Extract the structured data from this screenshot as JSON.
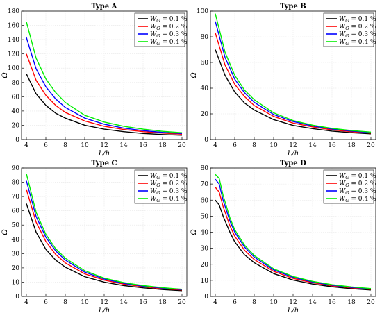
{
  "chart_data": [
    {
      "type": "line",
      "title": "Type A",
      "xlabel": "L/h",
      "ylabel": "Ω",
      "xlim": [
        3.5,
        20.5
      ],
      "ylim": [
        0,
        180
      ],
      "xticks": [
        "4",
        "6",
        "8",
        "10",
        "12",
        "14",
        "16",
        "18",
        "20"
      ],
      "yticks": [
        "0",
        "20",
        "40",
        "60",
        "80",
        "100",
        "120",
        "140",
        "160",
        "180"
      ],
      "grid": true,
      "legend_position": "top-right",
      "x": [
        4,
        5,
        6,
        7,
        8,
        10,
        12,
        14,
        16,
        18,
        20
      ],
      "series": [
        {
          "name": "W_G = 0.1 %",
          "color": "#000000",
          "values": [
            92,
            64,
            48,
            37,
            30,
            20,
            14.5,
            11,
            8.5,
            7,
            6
          ]
        },
        {
          "name": "W_G = 0.2 %",
          "color": "#ff0000",
          "values": [
            120,
            83,
            62,
            48,
            38,
            26,
            18.5,
            14,
            11,
            9,
            7.5
          ]
        },
        {
          "name": "W_G = 0.3 %",
          "color": "#0000ff",
          "values": [
            143,
            99,
            74,
            57,
            45,
            30,
            21.5,
            16,
            12.5,
            10,
            8.5
          ]
        },
        {
          "name": "W_G = 0.4 %",
          "color": "#00ee00",
          "values": [
            165,
            114,
            85,
            66,
            52,
            34,
            24.5,
            18.5,
            14.5,
            11.5,
            9.5
          ]
        }
      ]
    },
    {
      "type": "line",
      "title": "Type B",
      "xlabel": "L/h",
      "ylabel": "Ω",
      "xlim": [
        3.5,
        20.5
      ],
      "ylim": [
        0,
        100
      ],
      "xticks": [
        "4",
        "6",
        "8",
        "10",
        "12",
        "14",
        "16",
        "18",
        "20"
      ],
      "yticks": [
        "0",
        "20",
        "40",
        "60",
        "80",
        "100"
      ],
      "grid": true,
      "legend_position": "top-right",
      "x": [
        4,
        5,
        6,
        7,
        8,
        10,
        12,
        14,
        16,
        18,
        20
      ],
      "series": [
        {
          "name": "W_G = 0.1 %",
          "color": "#000000",
          "values": [
            70,
            50,
            37,
            28.5,
            23,
            15.5,
            11,
            8.5,
            6.5,
            5.3,
            4.4
          ]
        },
        {
          "name": "W_G = 0.2 %",
          "color": "#ff0000",
          "values": [
            83,
            58,
            43,
            33.5,
            26.5,
            18,
            12.8,
            9.8,
            7.5,
            6.1,
            5
          ]
        },
        {
          "name": "W_G = 0.3 %",
          "color": "#0000ff",
          "values": [
            92,
            64,
            47,
            36.5,
            29,
            19.5,
            14,
            10.6,
            8.2,
            6.6,
            5.4
          ]
        },
        {
          "name": "W_G = 0.4 %",
          "color": "#00ee00",
          "values": [
            98,
            68,
            50,
            38.5,
            31,
            20.8,
            14.8,
            11.2,
            8.7,
            7,
            5.8
          ]
        }
      ]
    },
    {
      "type": "line",
      "title": "Type C",
      "xlabel": "L/h",
      "ylabel": "Ω",
      "xlim": [
        3.5,
        20.5
      ],
      "ylim": [
        0,
        90
      ],
      "xticks": [
        "4",
        "6",
        "8",
        "10",
        "12",
        "14",
        "16",
        "18",
        "20"
      ],
      "yticks": [
        "0",
        "10",
        "20",
        "30",
        "40",
        "50",
        "60",
        "70",
        "80",
        "90"
      ],
      "grid": true,
      "legend_position": "top-right",
      "x": [
        4,
        5,
        6,
        7,
        8,
        10,
        12,
        14,
        16,
        18,
        20
      ],
      "series": [
        {
          "name": "W_G = 0.1 %",
          "color": "#000000",
          "values": [
            65,
            45,
            33,
            25.5,
            20.5,
            13.8,
            10,
            7.6,
            6,
            4.8,
            4
          ]
        },
        {
          "name": "W_G = 0.2 %",
          "color": "#ff0000",
          "values": [
            75,
            52,
            38.5,
            29.5,
            23.5,
            15.8,
            11.4,
            8.6,
            6.8,
            5.4,
            4.5
          ]
        },
        {
          "name": "W_G = 0.3 %",
          "color": "#0000ff",
          "values": [
            81,
            56,
            41.5,
            32,
            25.5,
            17,
            12.2,
            9.2,
            7.2,
            5.8,
            4.8
          ]
        },
        {
          "name": "W_G = 0.4 %",
          "color": "#00ee00",
          "values": [
            86,
            59,
            43.5,
            33.5,
            26.8,
            18,
            12.8,
            9.7,
            7.6,
            6.1,
            5
          ]
        }
      ]
    },
    {
      "type": "line",
      "title": "Type D",
      "xlabel": "L/h",
      "ylabel": "Ω",
      "xlim": [
        3.5,
        20.5
      ],
      "ylim": [
        0,
        80
      ],
      "xticks": [
        "4",
        "6",
        "8",
        "10",
        "12",
        "14",
        "16",
        "18",
        "20"
      ],
      "yticks": [
        "0",
        "10",
        "20",
        "30",
        "40",
        "50",
        "60",
        "70",
        "80"
      ],
      "grid": true,
      "legend_position": "top-right",
      "x": [
        4,
        4.4,
        4.8,
        5.5,
        6,
        7,
        8,
        10,
        12,
        14,
        16,
        18,
        20
      ],
      "series": [
        {
          "name": "W_G = 0.1 %",
          "color": "#000000",
          "values": [
            60,
            57,
            50,
            40,
            34,
            26,
            21,
            14.2,
            10.2,
            7.7,
            6,
            4.8,
            4
          ]
        },
        {
          "name": "W_G = 0.2 %",
          "color": "#ff0000",
          "values": [
            68,
            65,
            56,
            44,
            37.5,
            28.8,
            23,
            15.6,
            11.2,
            8.5,
            6.6,
            5.3,
            4.4
          ]
        },
        {
          "name": "W_G = 0.3 %",
          "color": "#0000ff",
          "values": [
            73,
            70,
            60,
            47,
            40,
            30.8,
            24.5,
            16.5,
            11.9,
            9,
            7,
            5.6,
            4.7
          ]
        },
        {
          "name": "W_G = 0.4 %",
          "color": "#00ee00",
          "values": [
            76,
            73.5,
            63,
            49,
            41.5,
            32,
            25.5,
            17.2,
            12.4,
            9.4,
            7.3,
            5.9,
            4.9
          ]
        }
      ]
    }
  ]
}
